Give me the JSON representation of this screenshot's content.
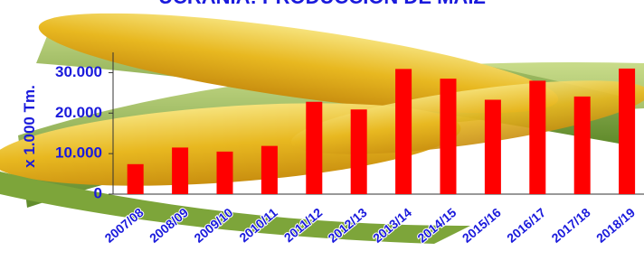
{
  "chart_data": {
    "type": "bar",
    "title": "UCRANIA: PRODUCCIÓN DE MAÍZ",
    "y_label": "x 1.000 Tm.",
    "categories": [
      "2007/08",
      "2008/09",
      "2009/10",
      "2010/11",
      "2011/12",
      "2012/13",
      "2013/14",
      "2014/15",
      "2015/16",
      "2016/17",
      "2017/18",
      "2018/19"
    ],
    "values": [
      7400,
      11500,
      10500,
      11900,
      22800,
      20900,
      30900,
      28500,
      23300,
      28000,
      24100,
      31000
    ],
    "color": "#ff0000",
    "ylim": [
      0,
      35000
    ],
    "yticks": [
      0,
      {
        "value": 10000,
        "label": "10.000"
      },
      {
        "value": 20000,
        "label": "20.000"
      },
      {
        "value": 30000,
        "label": "30.000"
      }
    ],
    "grid": false
  }
}
